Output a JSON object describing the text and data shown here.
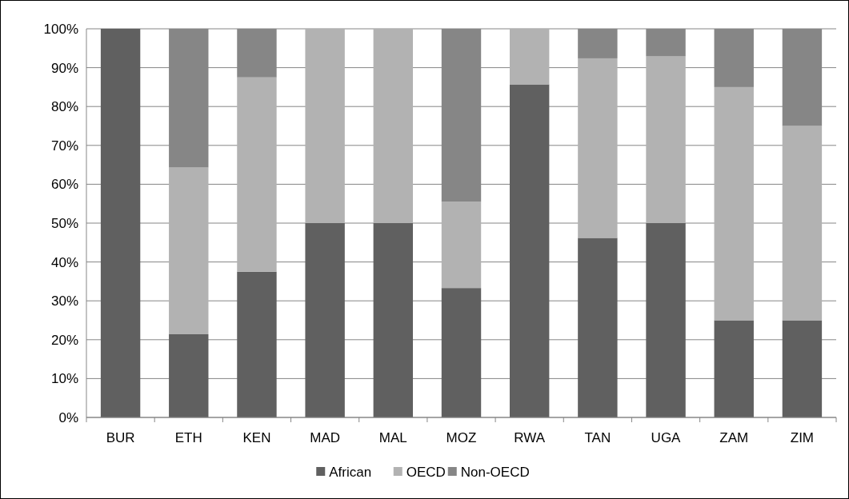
{
  "chart_data": {
    "type": "bar",
    "stacked": true,
    "categories": [
      "BUR",
      "ETH",
      "KEN",
      "MAD",
      "MAL",
      "MOZ",
      "RWA",
      "TAN",
      "UGA",
      "ZAM",
      "ZIM"
    ],
    "series": [
      {
        "name": "African",
        "color": "#606060",
        "values": [
          100,
          21.4,
          37.5,
          50,
          50,
          33.3,
          85.7,
          46.2,
          50,
          25,
          25
        ]
      },
      {
        "name": "OECD",
        "color": "#b2b2b2",
        "values": [
          0,
          42.9,
          50,
          50,
          50,
          22.2,
          14.3,
          46.2,
          42.9,
          60,
          50
        ]
      },
      {
        "name": "Non-OECD",
        "color": "#868686",
        "values": [
          0,
          35.7,
          12.5,
          0,
          0,
          44.5,
          0,
          7.6,
          7.1,
          15,
          25
        ]
      }
    ],
    "ylim": [
      0,
      100
    ],
    "yticks": [
      {
        "value": 0,
        "label": "0%"
      },
      {
        "value": 10,
        "label": "10%"
      },
      {
        "value": 20,
        "label": "20%"
      },
      {
        "value": 30,
        "label": "30%"
      },
      {
        "value": 40,
        "label": "40%"
      },
      {
        "value": 50,
        "label": "50%"
      },
      {
        "value": 60,
        "label": "60%"
      },
      {
        "value": 70,
        "label": "70%"
      },
      {
        "value": 80,
        "label": "80%"
      },
      {
        "value": 90,
        "label": "90%"
      },
      {
        "value": 100,
        "label": "100%"
      }
    ],
    "grid": "y",
    "legend": "bottom"
  }
}
